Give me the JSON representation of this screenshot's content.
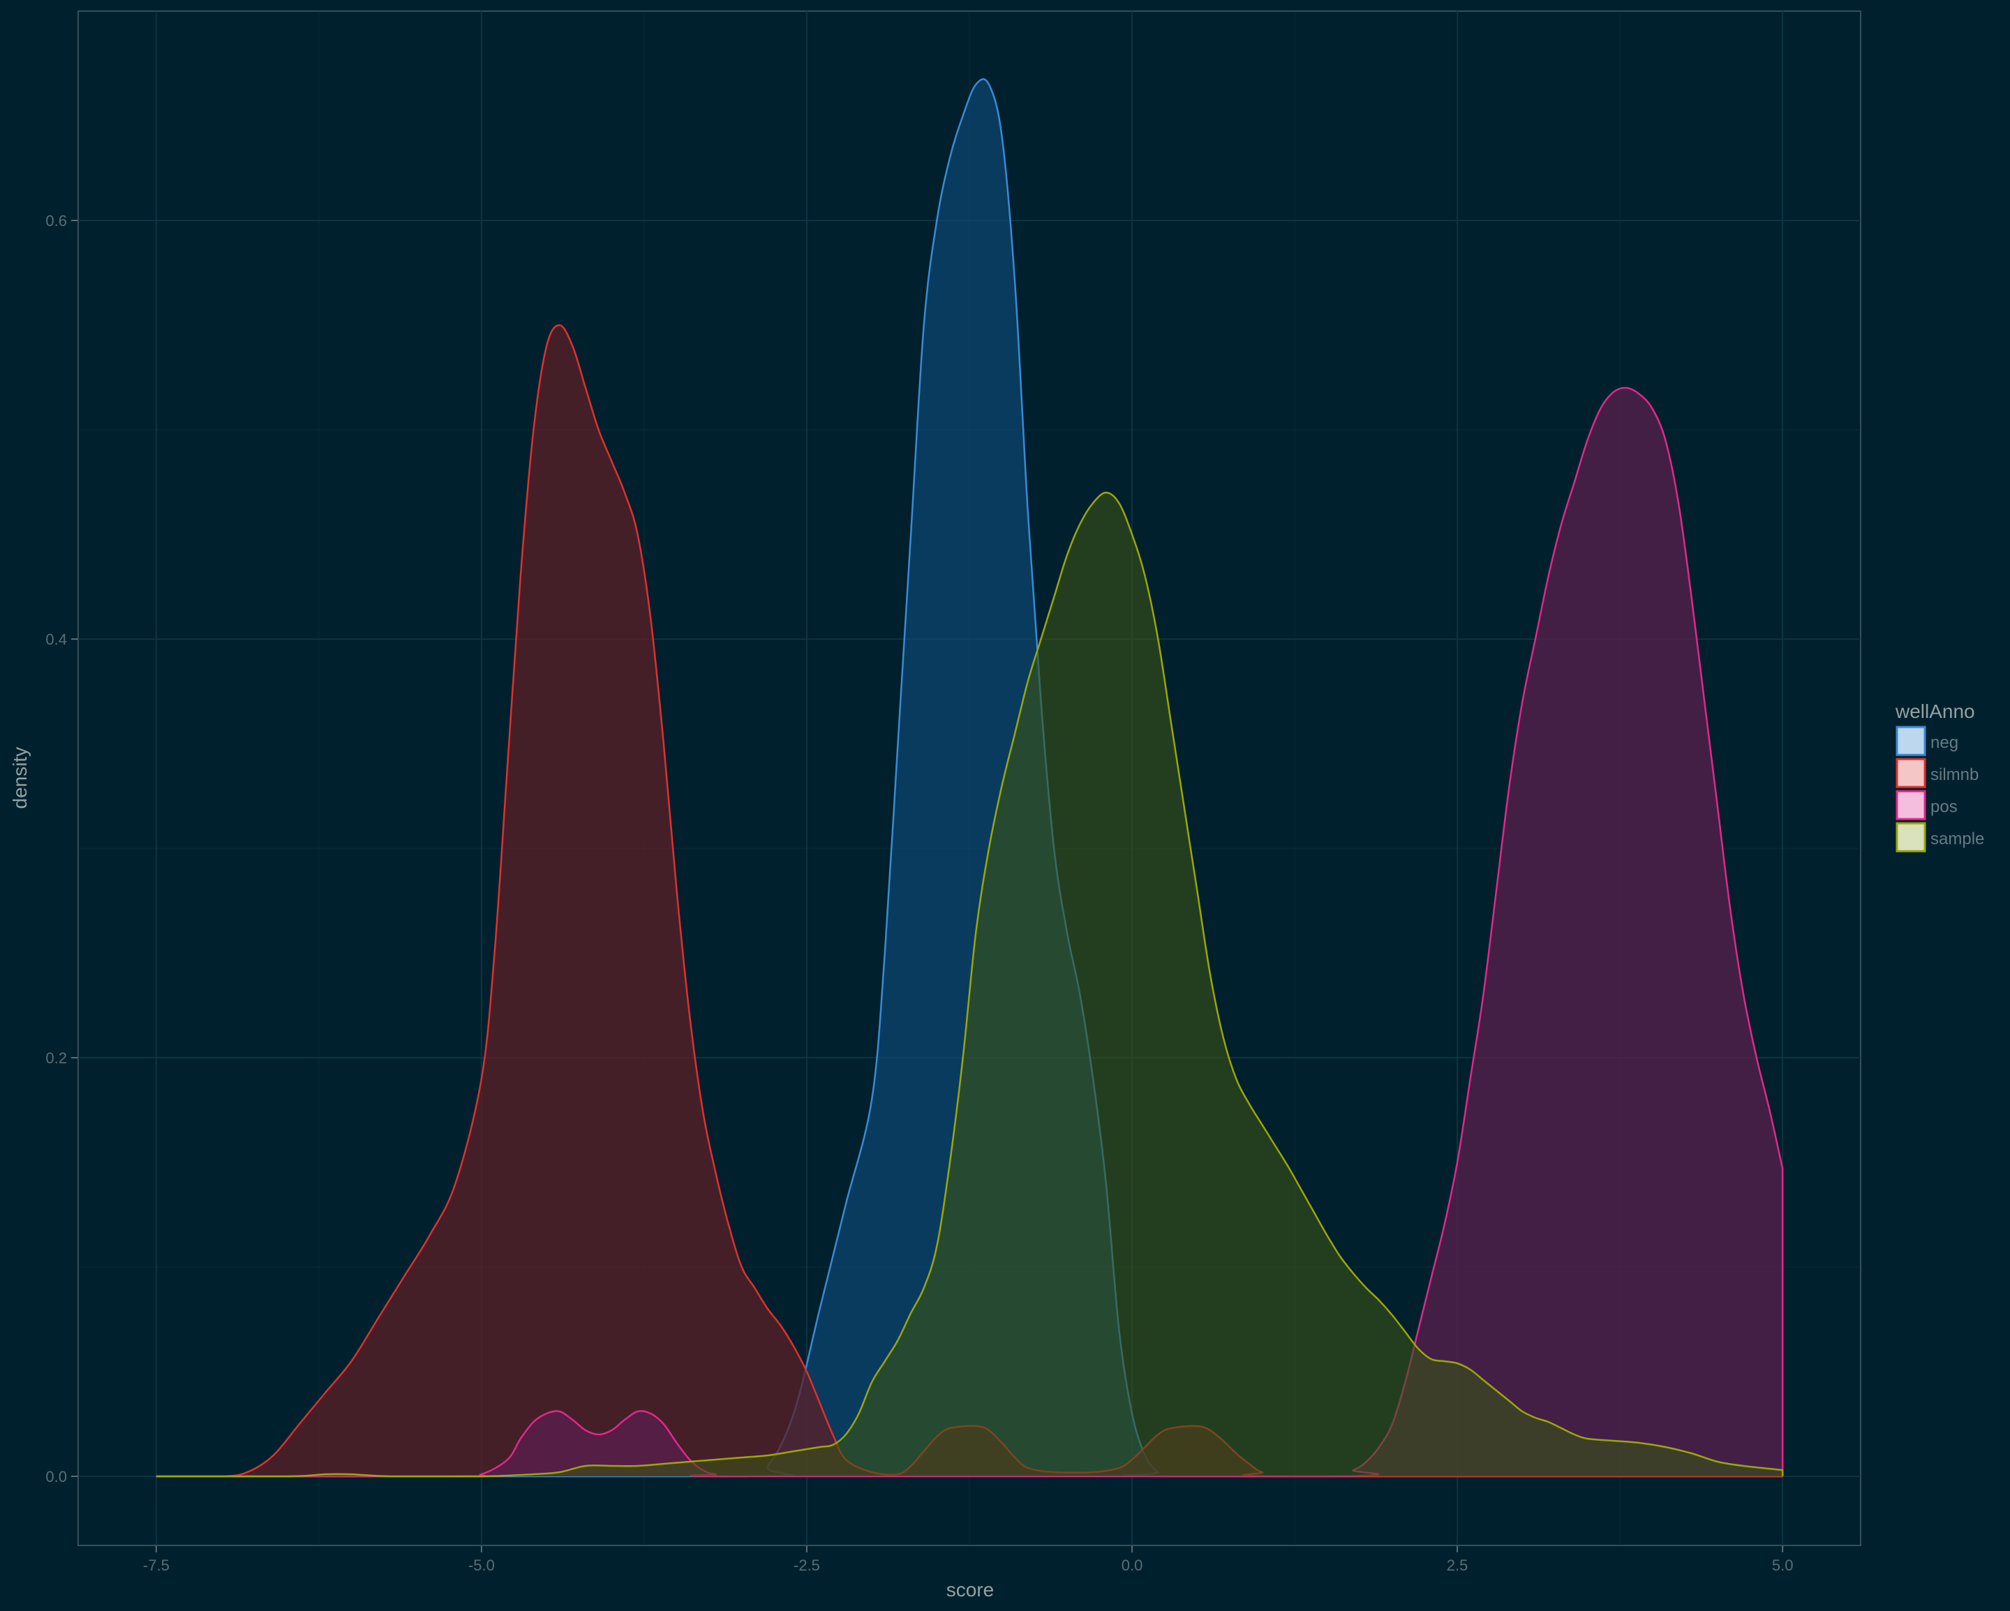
{
  "chart_data": {
    "type": "area",
    "subtype": "density",
    "title": "",
    "xlabel": "score",
    "ylabel": "density",
    "xlim": [
      -8.1,
      5.6
    ],
    "ylim": [
      -0.033,
      0.7
    ],
    "x_ticks": [
      {
        "value": -7.5,
        "label": "-7.5"
      },
      {
        "value": -5.0,
        "label": "-5.0"
      },
      {
        "value": -2.5,
        "label": "-2.5"
      },
      {
        "value": 0.0,
        "label": "0.0"
      },
      {
        "value": 2.5,
        "label": "2.5"
      },
      {
        "value": 5.0,
        "label": "5.0"
      }
    ],
    "y_ticks": [
      {
        "value": 0.0,
        "label": "0.0"
      },
      {
        "value": 0.2,
        "label": "0.2"
      },
      {
        "value": 0.4,
        "label": "0.4"
      },
      {
        "value": 0.6,
        "label": "0.6"
      }
    ],
    "grid": true,
    "legend": {
      "title": "wellAnno",
      "position": "right"
    },
    "background_color": "#00202d",
    "panel_color": "#00202d",
    "grid_color": "#0f3340",
    "series": [
      {
        "name": "neg",
        "stroke": "#3a8ad6",
        "fill": "#0d4a7a",
        "fill_opacity": 0.65,
        "legend_fill": "#bdd7ee",
        "points": [
          [
            -7.5,
            0
          ],
          [
            -3.0,
            0
          ],
          [
            -2.8,
            0.005
          ],
          [
            -2.6,
            0.03
          ],
          [
            -2.4,
            0.08
          ],
          [
            -2.2,
            0.13
          ],
          [
            -2.0,
            0.18
          ],
          [
            -1.9,
            0.25
          ],
          [
            -1.8,
            0.35
          ],
          [
            -1.7,
            0.45
          ],
          [
            -1.6,
            0.55
          ],
          [
            -1.5,
            0.6
          ],
          [
            -1.4,
            0.63
          ],
          [
            -1.3,
            0.65
          ],
          [
            -1.2,
            0.665
          ],
          [
            -1.1,
            0.665
          ],
          [
            -1.0,
            0.64
          ],
          [
            -0.9,
            0.57
          ],
          [
            -0.8,
            0.46
          ],
          [
            -0.7,
            0.37
          ],
          [
            -0.6,
            0.3
          ],
          [
            -0.5,
            0.26
          ],
          [
            -0.4,
            0.23
          ],
          [
            -0.3,
            0.19
          ],
          [
            -0.2,
            0.14
          ],
          [
            -0.1,
            0.07
          ],
          [
            0.0,
            0.03
          ],
          [
            0.1,
            0.01
          ],
          [
            0.2,
            0.002
          ],
          [
            0.3,
            0
          ],
          [
            5.0,
            0
          ]
        ]
      },
      {
        "name": "silmnb",
        "stroke": "#dc322f",
        "fill": "#5c1f27",
        "fill_opacity": 0.75,
        "legend_fill": "#f4c6c6",
        "points": [
          [
            -7.5,
            0
          ],
          [
            -7.0,
            0
          ],
          [
            -6.8,
            0.002
          ],
          [
            -6.6,
            0.01
          ],
          [
            -6.4,
            0.025
          ],
          [
            -6.2,
            0.04
          ],
          [
            -6.0,
            0.055
          ],
          [
            -5.8,
            0.075
          ],
          [
            -5.6,
            0.095
          ],
          [
            -5.4,
            0.115
          ],
          [
            -5.2,
            0.14
          ],
          [
            -5.0,
            0.19
          ],
          [
            -4.9,
            0.25
          ],
          [
            -4.8,
            0.34
          ],
          [
            -4.7,
            0.43
          ],
          [
            -4.6,
            0.5
          ],
          [
            -4.5,
            0.54
          ],
          [
            -4.4,
            0.55
          ],
          [
            -4.3,
            0.54
          ],
          [
            -4.2,
            0.52
          ],
          [
            -4.1,
            0.5
          ],
          [
            -4.0,
            0.485
          ],
          [
            -3.9,
            0.47
          ],
          [
            -3.8,
            0.45
          ],
          [
            -3.7,
            0.41
          ],
          [
            -3.6,
            0.35
          ],
          [
            -3.5,
            0.28
          ],
          [
            -3.4,
            0.22
          ],
          [
            -3.3,
            0.175
          ],
          [
            -3.2,
            0.145
          ],
          [
            -3.1,
            0.12
          ],
          [
            -3.0,
            0.1
          ],
          [
            -2.9,
            0.09
          ],
          [
            -2.8,
            0.08
          ],
          [
            -2.7,
            0.072
          ],
          [
            -2.6,
            0.062
          ],
          [
            -2.5,
            0.05
          ],
          [
            -2.4,
            0.035
          ],
          [
            -2.3,
            0.02
          ],
          [
            -2.2,
            0.008
          ],
          [
            -2.0,
            0.002
          ],
          [
            -1.8,
            0.001
          ],
          [
            -1.7,
            0.005
          ],
          [
            -1.6,
            0.012
          ],
          [
            -1.5,
            0.019
          ],
          [
            -1.4,
            0.023
          ],
          [
            -1.2,
            0.024
          ],
          [
            -1.1,
            0.022
          ],
          [
            -1.0,
            0.016
          ],
          [
            -0.9,
            0.009
          ],
          [
            -0.8,
            0.004
          ],
          [
            -0.6,
            0.002
          ],
          [
            -0.3,
            0.002
          ],
          [
            -0.1,
            0.004
          ],
          [
            0.0,
            0.008
          ],
          [
            0.1,
            0.014
          ],
          [
            0.2,
            0.02
          ],
          [
            0.3,
            0.023
          ],
          [
            0.5,
            0.024
          ],
          [
            0.6,
            0.022
          ],
          [
            0.7,
            0.017
          ],
          [
            0.8,
            0.011
          ],
          [
            0.9,
            0.006
          ],
          [
            1.0,
            0.002
          ],
          [
            1.2,
            0
          ],
          [
            5.0,
            0
          ]
        ]
      },
      {
        "name": "pos",
        "stroke": "#e0288a",
        "fill": "#5a1f4f",
        "fill_opacity": 0.75,
        "legend_fill": "#f4bfdf",
        "points": [
          [
            -7.5,
            0
          ],
          [
            -5.2,
            0
          ],
          [
            -5.0,
            0.001
          ],
          [
            -4.8,
            0.008
          ],
          [
            -4.7,
            0.018
          ],
          [
            -4.6,
            0.026
          ],
          [
            -4.5,
            0.03
          ],
          [
            -4.4,
            0.031
          ],
          [
            -4.3,
            0.027
          ],
          [
            -4.2,
            0.022
          ],
          [
            -4.1,
            0.02
          ],
          [
            -4.0,
            0.022
          ],
          [
            -3.9,
            0.027
          ],
          [
            -3.8,
            0.031
          ],
          [
            -3.7,
            0.03
          ],
          [
            -3.6,
            0.025
          ],
          [
            -3.5,
            0.016
          ],
          [
            -3.4,
            0.008
          ],
          [
            -3.3,
            0.003
          ],
          [
            -3.2,
            0.001
          ],
          [
            -3.0,
            0
          ],
          [
            1.5,
            0
          ],
          [
            1.7,
            0.003
          ],
          [
            1.8,
            0.007
          ],
          [
            1.9,
            0.014
          ],
          [
            2.0,
            0.025
          ],
          [
            2.1,
            0.045
          ],
          [
            2.2,
            0.07
          ],
          [
            2.3,
            0.095
          ],
          [
            2.4,
            0.12
          ],
          [
            2.5,
            0.15
          ],
          [
            2.6,
            0.19
          ],
          [
            2.7,
            0.23
          ],
          [
            2.8,
            0.28
          ],
          [
            2.9,
            0.33
          ],
          [
            3.0,
            0.37
          ],
          [
            3.1,
            0.4
          ],
          [
            3.2,
            0.43
          ],
          [
            3.3,
            0.455
          ],
          [
            3.4,
            0.475
          ],
          [
            3.5,
            0.495
          ],
          [
            3.6,
            0.51
          ],
          [
            3.7,
            0.518
          ],
          [
            3.8,
            0.52
          ],
          [
            3.9,
            0.517
          ],
          [
            4.0,
            0.51
          ],
          [
            4.1,
            0.495
          ],
          [
            4.2,
            0.465
          ],
          [
            4.3,
            0.42
          ],
          [
            4.4,
            0.37
          ],
          [
            4.5,
            0.32
          ],
          [
            4.6,
            0.27
          ],
          [
            4.7,
            0.23
          ],
          [
            4.8,
            0.2
          ],
          [
            4.9,
            0.175
          ],
          [
            5.0,
            0.147
          ]
        ]
      },
      {
        "name": "sample",
        "stroke": "#9aa60c",
        "fill": "#3b5415",
        "fill_opacity": 0.6,
        "legend_fill": "#d9e2bc",
        "points": [
          [
            -7.5,
            0
          ],
          [
            -6.5,
            0
          ],
          [
            -6.2,
            0.001
          ],
          [
            -6.0,
            0.001
          ],
          [
            -5.7,
            0
          ],
          [
            -5.0,
            0
          ],
          [
            -4.6,
            0.001
          ],
          [
            -4.4,
            0.002
          ],
          [
            -4.2,
            0.005
          ],
          [
            -4.0,
            0.005
          ],
          [
            -3.8,
            0.005
          ],
          [
            -3.6,
            0.006
          ],
          [
            -3.4,
            0.007
          ],
          [
            -3.2,
            0.008
          ],
          [
            -3.0,
            0.009
          ],
          [
            -2.8,
            0.01
          ],
          [
            -2.6,
            0.012
          ],
          [
            -2.4,
            0.014
          ],
          [
            -2.3,
            0.015
          ],
          [
            -2.2,
            0.02
          ],
          [
            -2.1,
            0.03
          ],
          [
            -2.0,
            0.045
          ],
          [
            -1.9,
            0.055
          ],
          [
            -1.8,
            0.065
          ],
          [
            -1.7,
            0.078
          ],
          [
            -1.6,
            0.09
          ],
          [
            -1.5,
            0.11
          ],
          [
            -1.4,
            0.15
          ],
          [
            -1.3,
            0.2
          ],
          [
            -1.2,
            0.26
          ],
          [
            -1.1,
            0.3
          ],
          [
            -1.0,
            0.33
          ],
          [
            -0.9,
            0.355
          ],
          [
            -0.8,
            0.38
          ],
          [
            -0.7,
            0.4
          ],
          [
            -0.6,
            0.42
          ],
          [
            -0.5,
            0.44
          ],
          [
            -0.4,
            0.455
          ],
          [
            -0.3,
            0.465
          ],
          [
            -0.2,
            0.47
          ],
          [
            -0.1,
            0.465
          ],
          [
            0.0,
            0.45
          ],
          [
            0.1,
            0.43
          ],
          [
            0.2,
            0.4
          ],
          [
            0.3,
            0.36
          ],
          [
            0.4,
            0.32
          ],
          [
            0.5,
            0.28
          ],
          [
            0.6,
            0.24
          ],
          [
            0.7,
            0.21
          ],
          [
            0.8,
            0.19
          ],
          [
            0.9,
            0.178
          ],
          [
            1.0,
            0.168
          ],
          [
            1.1,
            0.158
          ],
          [
            1.2,
            0.148
          ],
          [
            1.3,
            0.137
          ],
          [
            1.4,
            0.126
          ],
          [
            1.5,
            0.115
          ],
          [
            1.6,
            0.105
          ],
          [
            1.7,
            0.097
          ],
          [
            1.8,
            0.09
          ],
          [
            1.9,
            0.084
          ],
          [
            2.0,
            0.077
          ],
          [
            2.1,
            0.069
          ],
          [
            2.2,
            0.061
          ],
          [
            2.3,
            0.056
          ],
          [
            2.4,
            0.055
          ],
          [
            2.5,
            0.054
          ],
          [
            2.6,
            0.051
          ],
          [
            2.7,
            0.046
          ],
          [
            2.8,
            0.041
          ],
          [
            2.9,
            0.036
          ],
          [
            3.0,
            0.031
          ],
          [
            3.1,
            0.028
          ],
          [
            3.2,
            0.026
          ],
          [
            3.3,
            0.023
          ],
          [
            3.4,
            0.02
          ],
          [
            3.5,
            0.018
          ],
          [
            3.7,
            0.017
          ],
          [
            3.9,
            0.016
          ],
          [
            4.1,
            0.014
          ],
          [
            4.3,
            0.011
          ],
          [
            4.5,
            0.007
          ],
          [
            4.7,
            0.005
          ],
          [
            5.0,
            0.003
          ]
        ]
      }
    ]
  }
}
